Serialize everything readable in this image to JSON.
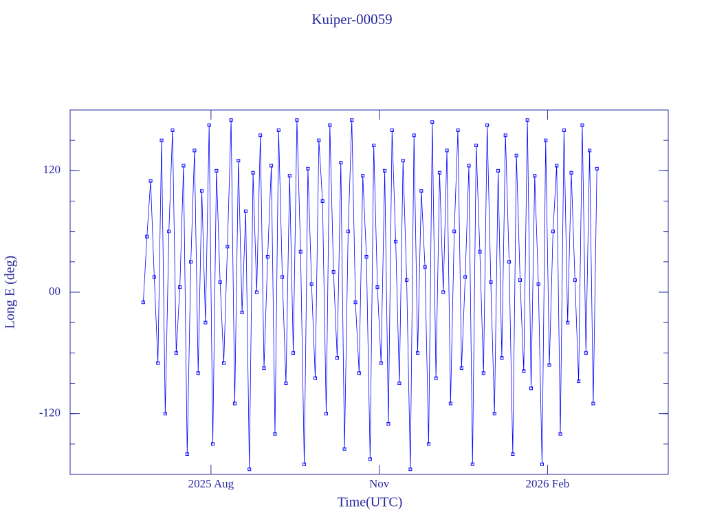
{
  "chart_data": {
    "type": "line",
    "title": "Kuiper-00059",
    "xlabel": "Time(UTC)",
    "ylabel": "Long E (deg)",
    "xlim": [
      0,
      327
    ],
    "xticks": [
      {
        "value": 77,
        "label": "2025 Aug"
      },
      {
        "value": 169,
        "label": "Nov"
      },
      {
        "value": 261,
        "label": "2026 Feb"
      }
    ],
    "ylim": [
      -180,
      180
    ],
    "yticks": [
      -120,
      {
        "value": 0,
        "label": "00"
      },
      120
    ],
    "series": [
      {
        "color": "#0000ff",
        "x": [
          40,
          42,
          44,
          46,
          48,
          50,
          52,
          54,
          56,
          58,
          60,
          62,
          64,
          66,
          68,
          70,
          72,
          74,
          76,
          78,
          80,
          82,
          84,
          86,
          88,
          90,
          92,
          94,
          96,
          98,
          100,
          102,
          104,
          106,
          108,
          110,
          112,
          114,
          116,
          118,
          120,
          122,
          124,
          126,
          128,
          130,
          132,
          134,
          136,
          138,
          140,
          142,
          144,
          146,
          148,
          150,
          152,
          154,
          156,
          158,
          160,
          162,
          164,
          166,
          168,
          170,
          172,
          174,
          176,
          178,
          180,
          182,
          184,
          186,
          188,
          190,
          192,
          194,
          196,
          198,
          200,
          202,
          204,
          206,
          208,
          210,
          212,
          214,
          216,
          218,
          220,
          222,
          224,
          226,
          228,
          230,
          232,
          234,
          236,
          238,
          240,
          242,
          244,
          246,
          248,
          250,
          252,
          254,
          256,
          258,
          260,
          262,
          264,
          266,
          268,
          270,
          272,
          274,
          276,
          278,
          280,
          282,
          284,
          286,
          288
        ],
        "values": [
          -10,
          55,
          110,
          15,
          -70,
          150,
          -120,
          60,
          160,
          -60,
          5,
          125,
          -160,
          30,
          140,
          -80,
          100,
          -30,
          165,
          -150,
          120,
          10,
          -70,
          45,
          170,
          -110,
          130,
          -20,
          80,
          -175,
          118,
          0,
          155,
          -75,
          35,
          125,
          -140,
          160,
          15,
          -90,
          115,
          -60,
          170,
          40,
          -170,
          122,
          8,
          -85,
          150,
          90,
          -120,
          165,
          20,
          -65,
          128,
          -155,
          60,
          170,
          -10,
          -80,
          115,
          35,
          -165,
          145,
          5,
          -70,
          120,
          -130,
          160,
          50,
          -90,
          130,
          12,
          -175,
          155,
          -60,
          100,
          25,
          -150,
          168,
          -85,
          118,
          0,
          140,
          -110,
          60,
          160,
          -75,
          15,
          125,
          -170,
          145,
          40,
          -80,
          165,
          10,
          -120,
          120,
          -65,
          155,
          30,
          -160,
          135,
          12,
          -78,
          170,
          -95,
          115,
          8,
          -170,
          150,
          -72,
          60,
          125,
          -140,
          160,
          -30,
          118,
          12,
          -88,
          165,
          -60,
          140,
          -110,
          122
        ]
      }
    ]
  }
}
